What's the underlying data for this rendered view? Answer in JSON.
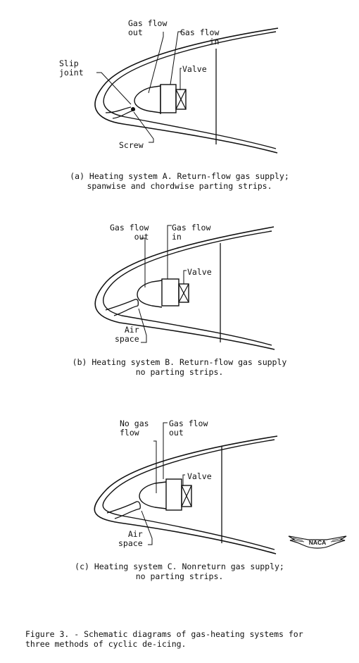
{
  "diagrams": {
    "a": {
      "labels": {
        "gas_flow_out": "Gas flow\nout",
        "gas_flow_in": "Gas flow\nin",
        "slip_joint": "Slip\njoint",
        "valve": "Valve",
        "screw": "Screw"
      },
      "caption": "(a) Heating system A.  Return-flow gas supply;\n    spanwise and chordwise parting strips."
    },
    "b": {
      "labels": {
        "gas_flow_out": "Gas flow\nout",
        "gas_flow_in": "Gas flow\nin",
        "valve": "Valve",
        "air_space": "Air\nspace"
      },
      "caption": "(b) Heating system B.  Return-flow gas supply\n     no parting strips."
    },
    "c": {
      "labels": {
        "no_gas_flow": "No gas\nflow",
        "gas_flow_out": "Gas flow\nout",
        "valve": "Valve",
        "air_space": "Air\nspace"
      },
      "caption": "(c) Heating system C.  Nonreturn gas supply;\n     no parting strips."
    }
  },
  "logo": {
    "text": "NACA"
  },
  "figure_caption": "Figure 3. - Schematic diagrams of gas-heating systems for\n  three methods of cyclic de-icing.",
  "colors": {
    "ink": "#111111",
    "background": "#ffffff"
  }
}
